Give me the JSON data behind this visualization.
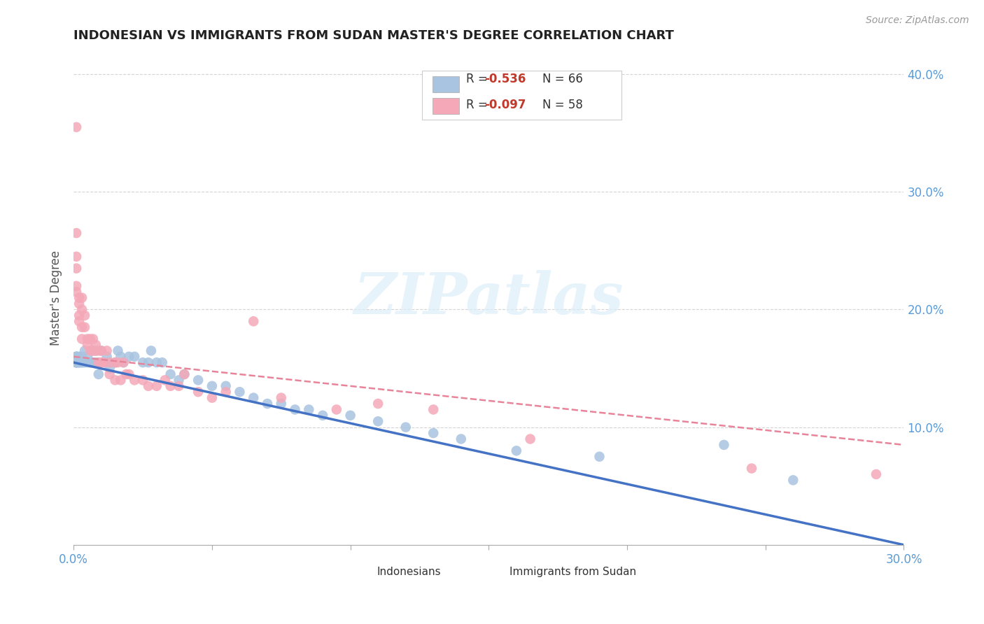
{
  "title": "INDONESIAN VS IMMIGRANTS FROM SUDAN MASTER'S DEGREE CORRELATION CHART",
  "source": "Source: ZipAtlas.com",
  "ylabel_label": "Master's Degree",
  "x_min": 0.0,
  "x_max": 0.3,
  "y_min": 0.0,
  "y_max": 0.42,
  "x_ticks": [
    0.0,
    0.05,
    0.1,
    0.15,
    0.2,
    0.25,
    0.3
  ],
  "x_tick_labels": [
    "0.0%",
    "",
    "",
    "",
    "",
    "",
    "30.0%"
  ],
  "y_ticks": [
    0.0,
    0.1,
    0.2,
    0.3,
    0.4
  ],
  "y_tick_labels_right": [
    "",
    "10.0%",
    "20.0%",
    "30.0%",
    "40.0%"
  ],
  "indonesian_color": "#a8c4e0",
  "sudan_color": "#f4a8b8",
  "indonesian_line_color": "#4472c4",
  "sudan_line_color": "#e8849a",
  "indonesian_R": -0.536,
  "indonesian_N": 66,
  "sudan_R": -0.097,
  "sudan_N": 58,
  "watermark_text": "ZIPatlas",
  "indonesian_points": [
    [
      0.001,
      0.155
    ],
    [
      0.001,
      0.16
    ],
    [
      0.001,
      0.155
    ],
    [
      0.001,
      0.16
    ],
    [
      0.001,
      0.155
    ],
    [
      0.001,
      0.16
    ],
    [
      0.001,
      0.155
    ],
    [
      0.002,
      0.155
    ],
    [
      0.002,
      0.16
    ],
    [
      0.002,
      0.155
    ],
    [
      0.002,
      0.155
    ],
    [
      0.003,
      0.155
    ],
    [
      0.003,
      0.16
    ],
    [
      0.003,
      0.155
    ],
    [
      0.004,
      0.165
    ],
    [
      0.004,
      0.155
    ],
    [
      0.005,
      0.16
    ],
    [
      0.005,
      0.155
    ],
    [
      0.006,
      0.155
    ],
    [
      0.006,
      0.155
    ],
    [
      0.007,
      0.155
    ],
    [
      0.007,
      0.165
    ],
    [
      0.008,
      0.155
    ],
    [
      0.008,
      0.165
    ],
    [
      0.009,
      0.155
    ],
    [
      0.009,
      0.145
    ],
    [
      0.01,
      0.155
    ],
    [
      0.01,
      0.165
    ],
    [
      0.012,
      0.155
    ],
    [
      0.012,
      0.16
    ],
    [
      0.013,
      0.155
    ],
    [
      0.013,
      0.15
    ],
    [
      0.015,
      0.155
    ],
    [
      0.015,
      0.155
    ],
    [
      0.016,
      0.165
    ],
    [
      0.017,
      0.16
    ],
    [
      0.018,
      0.155
    ],
    [
      0.02,
      0.16
    ],
    [
      0.022,
      0.16
    ],
    [
      0.025,
      0.155
    ],
    [
      0.027,
      0.155
    ],
    [
      0.028,
      0.165
    ],
    [
      0.03,
      0.155
    ],
    [
      0.032,
      0.155
    ],
    [
      0.035,
      0.145
    ],
    [
      0.038,
      0.14
    ],
    [
      0.04,
      0.145
    ],
    [
      0.045,
      0.14
    ],
    [
      0.05,
      0.135
    ],
    [
      0.055,
      0.135
    ],
    [
      0.06,
      0.13
    ],
    [
      0.065,
      0.125
    ],
    [
      0.07,
      0.12
    ],
    [
      0.075,
      0.12
    ],
    [
      0.08,
      0.115
    ],
    [
      0.085,
      0.115
    ],
    [
      0.09,
      0.11
    ],
    [
      0.1,
      0.11
    ],
    [
      0.11,
      0.105
    ],
    [
      0.12,
      0.1
    ],
    [
      0.13,
      0.095
    ],
    [
      0.14,
      0.09
    ],
    [
      0.16,
      0.08
    ],
    [
      0.19,
      0.075
    ],
    [
      0.235,
      0.085
    ],
    [
      0.26,
      0.055
    ]
  ],
  "sudan_points": [
    [
      0.001,
      0.355
    ],
    [
      0.001,
      0.265
    ],
    [
      0.001,
      0.245
    ],
    [
      0.001,
      0.235
    ],
    [
      0.001,
      0.22
    ],
    [
      0.001,
      0.215
    ],
    [
      0.002,
      0.21
    ],
    [
      0.002,
      0.205
    ],
    [
      0.002,
      0.195
    ],
    [
      0.002,
      0.19
    ],
    [
      0.003,
      0.21
    ],
    [
      0.003,
      0.2
    ],
    [
      0.003,
      0.185
    ],
    [
      0.003,
      0.175
    ],
    [
      0.004,
      0.195
    ],
    [
      0.004,
      0.185
    ],
    [
      0.005,
      0.175
    ],
    [
      0.005,
      0.17
    ],
    [
      0.006,
      0.165
    ],
    [
      0.006,
      0.175
    ],
    [
      0.007,
      0.175
    ],
    [
      0.007,
      0.165
    ],
    [
      0.008,
      0.165
    ],
    [
      0.008,
      0.17
    ],
    [
      0.009,
      0.155
    ],
    [
      0.009,
      0.165
    ],
    [
      0.01,
      0.155
    ],
    [
      0.01,
      0.165
    ],
    [
      0.011,
      0.155
    ],
    [
      0.012,
      0.165
    ],
    [
      0.013,
      0.155
    ],
    [
      0.013,
      0.145
    ],
    [
      0.015,
      0.155
    ],
    [
      0.015,
      0.14
    ],
    [
      0.016,
      0.155
    ],
    [
      0.017,
      0.14
    ],
    [
      0.018,
      0.155
    ],
    [
      0.019,
      0.145
    ],
    [
      0.02,
      0.145
    ],
    [
      0.022,
      0.14
    ],
    [
      0.025,
      0.14
    ],
    [
      0.027,
      0.135
    ],
    [
      0.03,
      0.135
    ],
    [
      0.033,
      0.14
    ],
    [
      0.035,
      0.135
    ],
    [
      0.038,
      0.135
    ],
    [
      0.04,
      0.145
    ],
    [
      0.045,
      0.13
    ],
    [
      0.05,
      0.125
    ],
    [
      0.055,
      0.13
    ],
    [
      0.065,
      0.19
    ],
    [
      0.075,
      0.125
    ],
    [
      0.095,
      0.115
    ],
    [
      0.11,
      0.12
    ],
    [
      0.13,
      0.115
    ],
    [
      0.165,
      0.09
    ],
    [
      0.245,
      0.065
    ],
    [
      0.29,
      0.06
    ]
  ]
}
